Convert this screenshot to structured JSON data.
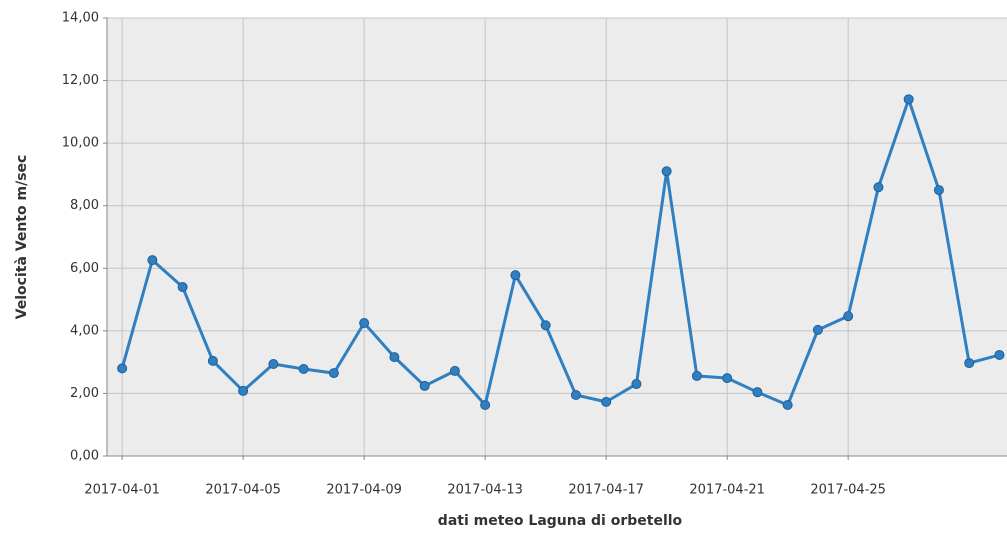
{
  "chart_data": {
    "type": "line",
    "xlabel": "dati meteo Laguna di orbetello",
    "ylabel": "Velocità Vento m/sec",
    "x": [
      "2017-04-01",
      "2017-04-02",
      "2017-04-03",
      "2017-04-04",
      "2017-04-05",
      "2017-04-06",
      "2017-04-07",
      "2017-04-08",
      "2017-04-09",
      "2017-04-10",
      "2017-04-11",
      "2017-04-12",
      "2017-04-13",
      "2017-04-14",
      "2017-04-15",
      "2017-04-16",
      "2017-04-17",
      "2017-04-18",
      "2017-04-19",
      "2017-04-20",
      "2017-04-21",
      "2017-04-22",
      "2017-04-23",
      "2017-04-24",
      "2017-04-25",
      "2017-04-26",
      "2017-04-27",
      "2017-04-28",
      "2017-04-29",
      "2017-04-30"
    ],
    "series": [
      {
        "name": "Velocità Vento",
        "color": "#2f7fc1",
        "values": [
          2.8,
          6.26,
          5.4,
          3.04,
          2.08,
          2.94,
          2.78,
          2.65,
          4.25,
          3.16,
          2.24,
          2.72,
          1.63,
          5.78,
          4.18,
          1.95,
          1.73,
          2.3,
          9.1,
          2.56,
          2.49,
          2.04,
          1.63,
          4.03,
          4.47,
          8.59,
          11.4,
          8.5,
          2.97,
          3.23
        ]
      }
    ],
    "xlim": [
      "2017-03-31T12:00",
      "2017-04-30T06:00"
    ],
    "xticks": [
      "2017-04-01",
      "2017-04-05",
      "2017-04-09",
      "2017-04-13",
      "2017-04-17",
      "2017-04-21",
      "2017-04-25"
    ],
    "ylim": [
      0,
      14
    ],
    "yticks": [
      {
        "value": 0,
        "label": "0,00"
      },
      {
        "value": 2,
        "label": "2,00"
      },
      {
        "value": 4,
        "label": "4,00"
      },
      {
        "value": 6,
        "label": "6,00"
      },
      {
        "value": 8,
        "label": "8,00"
      },
      {
        "value": 10,
        "label": "10,00"
      },
      {
        "value": 12,
        "label": "12,00"
      },
      {
        "value": 14,
        "label": "14,00"
      }
    ],
    "grid": true
  }
}
